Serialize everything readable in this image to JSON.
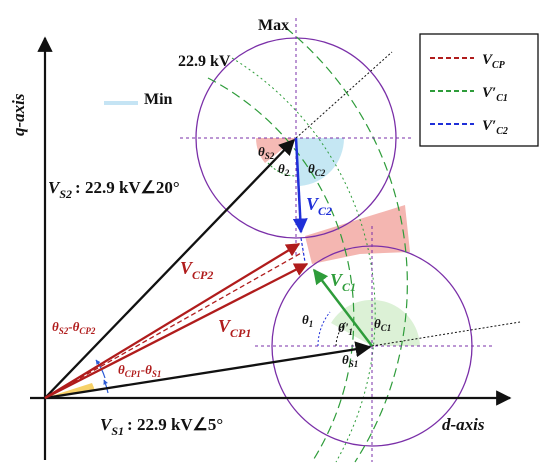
{
  "axes": {
    "q_axis": "q-axis",
    "d_axis": "d-axis"
  },
  "circle_labels": {
    "max": "Max",
    "min": "Min",
    "voltage": "22.9 kV"
  },
  "vectors": {
    "vs1": {
      "name": "V",
      "sub": "S1",
      "value": ": 22.9 kV∠5°",
      "color": "#111111"
    },
    "vs2": {
      "name": "V",
      "sub": "S2",
      "value": ": 22.9 kV∠20°",
      "color": "#111111"
    },
    "vcp1": {
      "name": "V",
      "sub": "CP1",
      "color": "#b01c1c"
    },
    "vcp2": {
      "name": "V",
      "sub": "CP2",
      "color": "#b01c1c"
    },
    "vc1": {
      "name": "V",
      "sub": "C1",
      "color": "#2e9c3a"
    },
    "vc2": {
      "name": "V",
      "sub": "C2",
      "color": "#1f2fd8"
    }
  },
  "angles": {
    "theta_s2": {
      "sym": "θ",
      "sub": "S2"
    },
    "theta_2": {
      "sym": "θ",
      "sub": "2"
    },
    "theta_c2": {
      "sym": "θ",
      "sub": "C2"
    },
    "theta_1": {
      "sym": "θ",
      "sub": "1"
    },
    "theta_1_prime": {
      "sym": "θ'",
      "sub": "1"
    },
    "theta_c1": {
      "sym": "θ",
      "sub": "C1"
    },
    "theta_s1": {
      "sym": "θ",
      "sub": "S1"
    },
    "diff_s2_cp2": {
      "a": "θ",
      "a_sub": "S2",
      "sep": "-",
      "b": "θ",
      "b_sub": "CP2"
    },
    "diff_cp1_s1": {
      "a": "θ",
      "a_sub": "CP1",
      "sep": "-",
      "b": "θ",
      "b_sub": "S1"
    }
  },
  "legend": [
    {
      "name": "V",
      "sub": "CP",
      "prime": "",
      "color": "#b01c1c"
    },
    {
      "name": "V",
      "sub": "C1",
      "prime": "′",
      "color": "#2e9c3a"
    },
    {
      "name": "V",
      "sub": "C2",
      "prime": "′",
      "color": "#1f2fd8"
    }
  ],
  "colors": {
    "circle": "#7a2fa8",
    "overlap_fill": "#f2a9a3",
    "blue_sector": "#bfe4f2",
    "green_sector": "#d8f0d2",
    "guide": "#7a2fa8"
  }
}
